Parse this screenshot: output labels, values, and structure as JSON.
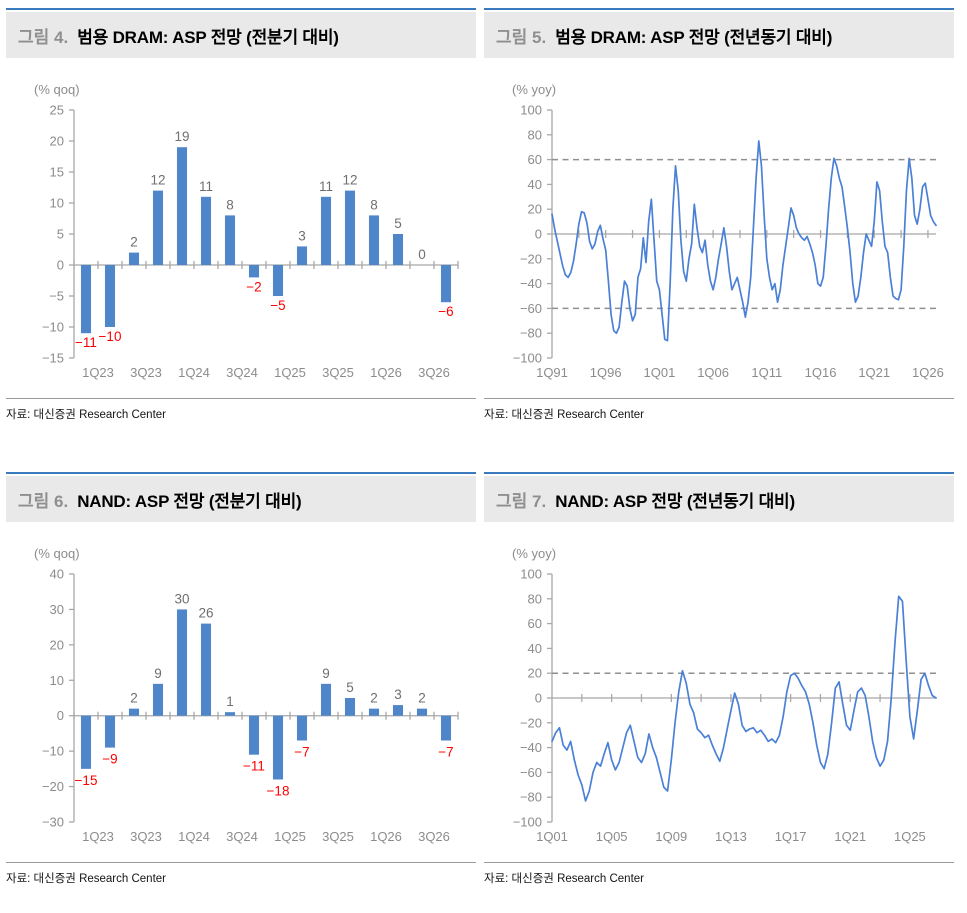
{
  "page": {
    "background": "#ffffff"
  },
  "colors": {
    "rule_blue": "#3a7abf",
    "header_bg": "#e9e9e9",
    "header_number": "#8f8f8f",
    "axis": "#a8a8a8",
    "tick_label": "#8c8c8c",
    "value_label": "#6f6f6f",
    "negative": "#ff0000",
    "dashed": "#8f8f8f",
    "bar_blue": "#4f86ca",
    "line_blue": "#4a80d6"
  },
  "figures": [
    {
      "label": "그림 4.",
      "title": "범용 DRAM: ASP 전망 (전분기 대비)",
      "source": "자료: 대신증권 Research Center"
    },
    {
      "label": "그림 5.",
      "title": "범용 DRAM: ASP 전망 (전년동기 대비)",
      "source": "자료: 대신증권 Research Center"
    },
    {
      "label": "그림 6.",
      "title": "NAND: ASP 전망 (전분기 대비)",
      "source": "자료: 대신증권 Research Center"
    },
    {
      "label": "그림 7.",
      "title": "NAND: ASP 전망 (전년동기 대비)",
      "source": "자료: 대신증권 Research Center"
    }
  ],
  "chart_data": [
    {
      "type": "bar",
      "title": "범용 DRAM: ASP 전망 (전분기 대비)",
      "unit_label": "(% qoq)",
      "categories": [
        "1Q23",
        "2Q23",
        "3Q23",
        "4Q23",
        "1Q24",
        "2Q24",
        "3Q24",
        "4Q24",
        "1Q25",
        "2Q25",
        "3Q25",
        "4Q25",
        "1Q26",
        "2Q26",
        "3Q26",
        "4Q26"
      ],
      "values": [
        -11,
        -10,
        2,
        12,
        19,
        11,
        8,
        -2,
        -5,
        3,
        11,
        12,
        8,
        5,
        0,
        -6
      ],
      "xtick_labels": [
        "1Q23",
        "3Q23",
        "1Q24",
        "3Q24",
        "1Q25",
        "3Q25",
        "1Q26",
        "3Q26"
      ],
      "ylim": [
        -15,
        25
      ],
      "ystep": 5,
      "grid": false,
      "neg_label_offset": 14,
      "color": "#4f86ca"
    },
    {
      "type": "line",
      "title": "범용 DRAM: ASP 전망 (전년동기 대비)",
      "unit_label": "(% yoy)",
      "x_start": "1Q91",
      "x_end": "4Q26",
      "frequency": "quarterly",
      "xtick_labels": [
        "1Q91",
        "1Q96",
        "1Q01",
        "1Q06",
        "1Q11",
        "1Q16",
        "1Q21",
        "1Q26"
      ],
      "xtick_every": 20,
      "ylim": [
        -100,
        100
      ],
      "ystep": 20,
      "grid": false,
      "ref_lines": [
        60,
        -60
      ],
      "color": "#4a80d6",
      "values": [
        16,
        4,
        -6,
        -16,
        -26,
        -33,
        -35,
        -31,
        -22,
        -8,
        8,
        18,
        17,
        9,
        -6,
        -12,
        -8,
        2,
        7,
        -4,
        -13,
        -38,
        -65,
        -78,
        -80,
        -75,
        -55,
        -38,
        -42,
        -60,
        -70,
        -65,
        -35,
        -28,
        -3,
        -23,
        10,
        28,
        -5,
        -38,
        -45,
        -65,
        -85,
        -86,
        -40,
        20,
        55,
        35,
        -5,
        -30,
        -38,
        -20,
        -8,
        24,
        5,
        -10,
        -15,
        -5,
        -25,
        -38,
        -45,
        -35,
        -20,
        -8,
        5,
        -10,
        -30,
        -45,
        -40,
        -35,
        -45,
        -55,
        -67,
        -55,
        -35,
        5,
        45,
        75,
        55,
        15,
        -20,
        -35,
        -45,
        -40,
        -55,
        -45,
        -25,
        -10,
        5,
        21,
        15,
        5,
        0,
        -3,
        -5,
        -2,
        -8,
        -15,
        -25,
        -40,
        -42,
        -35,
        -10,
        20,
        45,
        61,
        55,
        45,
        38,
        22,
        5,
        -15,
        -40,
        -55,
        -50,
        -35,
        -15,
        0,
        -5,
        -10,
        10,
        42,
        35,
        10,
        -10,
        -15,
        -35,
        -50,
        -52,
        -53,
        -45,
        -10,
        35,
        61,
        45,
        15,
        8,
        20,
        38,
        41,
        28,
        15,
        10,
        7
      ]
    },
    {
      "type": "bar",
      "title": "NAND: ASP 전망 (전분기 대비)",
      "unit_label": "(% qoq)",
      "categories": [
        "1Q23",
        "2Q23",
        "3Q23",
        "4Q23",
        "1Q24",
        "2Q24",
        "3Q24",
        "4Q24",
        "1Q25",
        "2Q25",
        "3Q25",
        "4Q25",
        "1Q26",
        "2Q26",
        "3Q26",
        "4Q26"
      ],
      "values": [
        -15,
        -9,
        2,
        9,
        30,
        26,
        1,
        -11,
        -18,
        -7,
        9,
        5,
        2,
        3,
        2,
        -7
      ],
      "xtick_labels": [
        "1Q23",
        "3Q23",
        "1Q24",
        "3Q24",
        "1Q25",
        "3Q25",
        "1Q26",
        "3Q26"
      ],
      "ylim": [
        -30,
        40
      ],
      "ystep": 10,
      "grid": false,
      "neg_label_offset": 16,
      "color": "#4f86ca"
    },
    {
      "type": "line",
      "title": "NAND: ASP 전망 (전년동기 대비)",
      "unit_label": "(% yoy)",
      "x_start": "1Q01",
      "x_end": "4Q26",
      "frequency": "quarterly",
      "xtick_labels": [
        "1Q01",
        "1Q05",
        "1Q09",
        "1Q13",
        "1Q17",
        "1Q21",
        "1Q25"
      ],
      "xtick_every": 16,
      "ylim": [
        -100,
        100
      ],
      "ystep": 20,
      "grid": false,
      "ref_lines": [
        20
      ],
      "color": "#4a80d6",
      "values": [
        -35,
        -28,
        -24,
        -38,
        -42,
        -35,
        -50,
        -62,
        -70,
        -83,
        -75,
        -60,
        -52,
        -55,
        -45,
        -36,
        -50,
        -58,
        -52,
        -40,
        -28,
        -22,
        -35,
        -48,
        -52,
        -45,
        -29,
        -40,
        -48,
        -60,
        -72,
        -75,
        -50,
        -20,
        5,
        22,
        12,
        -5,
        -12,
        -25,
        -28,
        -32,
        -30,
        -38,
        -45,
        -51,
        -40,
        -25,
        -10,
        4,
        -5,
        -22,
        -27,
        -25,
        -24,
        -28,
        -26,
        -30,
        -35,
        -33,
        -36,
        -30,
        -15,
        5,
        18,
        20,
        16,
        10,
        5,
        -5,
        -20,
        -38,
        -52,
        -57,
        -45,
        -20,
        8,
        13,
        -5,
        -22,
        -26,
        -10,
        5,
        8,
        2,
        -15,
        -35,
        -48,
        -55,
        -50,
        -35,
        0,
        45,
        82,
        78,
        30,
        -15,
        -33,
        -10,
        15,
        20,
        10,
        2,
        0
      ]
    }
  ]
}
